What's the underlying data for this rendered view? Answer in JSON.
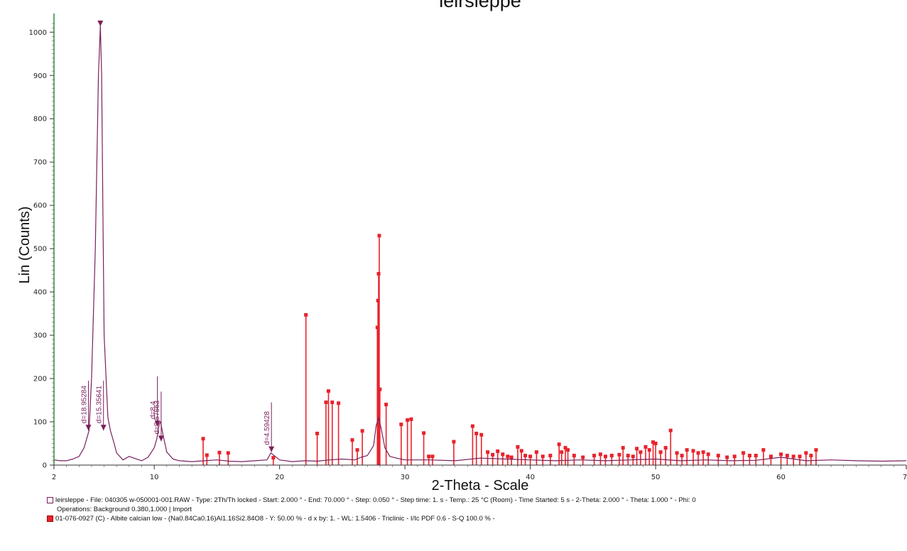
{
  "chart_data": {
    "type": "line",
    "title": "leirsleppe",
    "xlabel": "2-Theta - Scale",
    "ylabel": "Lin (Counts)",
    "xlim": [
      2,
      70
    ],
    "ylim": [
      0,
      1030
    ],
    "x_ticks": [
      "2",
      "10",
      "20",
      "30",
      "40",
      "50",
      "60",
      "7"
    ],
    "y_ticks": [
      "0",
      "100",
      "200",
      "300",
      "400",
      "500",
      "600",
      "700",
      "800",
      "900",
      "1000"
    ],
    "grid": false,
    "colors": {
      "pattern": "#7a1f5c",
      "reference": "#e8222b",
      "axis": "#2e8b3d"
    },
    "series": [
      {
        "name": "leirsleppe",
        "x": [
          2.0,
          2.5,
          3.0,
          3.5,
          4.0,
          4.4,
          4.8,
          5.0,
          5.3,
          5.55,
          5.7,
          5.8,
          5.9,
          6.0,
          6.3,
          6.5,
          6.8,
          7.0,
          7.5,
          8.0,
          8.5,
          9.0,
          9.5,
          10.0,
          10.2,
          10.4,
          10.5,
          10.7,
          11.0,
          11.5,
          12,
          13,
          14,
          15,
          16,
          17,
          18,
          19,
          19.3,
          20,
          21,
          22,
          23,
          24,
          25,
          26,
          26.5,
          27,
          27.5,
          27.7,
          27.9,
          28.1,
          28.4,
          28.8,
          29.5,
          30,
          32,
          34,
          36,
          38,
          40,
          42,
          44,
          46,
          48,
          50,
          52,
          54,
          56,
          58,
          60,
          62,
          64,
          66,
          68,
          70
        ],
        "y": [
          12,
          10,
          10,
          14,
          20,
          40,
          80,
          200,
          500,
          900,
          1015,
          900,
          600,
          300,
          110,
          80,
          50,
          28,
          12,
          20,
          15,
          10,
          18,
          40,
          60,
          95,
          100,
          70,
          30,
          14,
          10,
          8,
          10,
          12,
          9,
          8,
          10,
          12,
          28,
          12,
          8,
          10,
          9,
          12,
          14,
          12,
          18,
          22,
          45,
          90,
          110,
          85,
          40,
          20,
          15,
          12,
          12,
          10,
          16,
          14,
          12,
          10,
          12,
          10,
          12,
          14,
          10,
          12,
          10,
          11,
          18,
          10,
          12,
          10,
          9,
          10
        ]
      },
      {
        "name": "01-076-0927 (C) - Albite calcian low",
        "x": [
          13.9,
          14.2,
          15.2,
          15.9,
          19.5,
          22.1,
          23.0,
          23.7,
          23.9,
          24.2,
          24.7,
          25.8,
          26.2,
          26.6,
          27.8,
          27.85,
          27.9,
          27.95,
          28.0,
          28.5,
          29.7,
          30.2,
          30.5,
          31.5,
          31.9,
          32.2,
          33.9,
          35.4,
          35.7,
          36.1,
          36.6,
          37.0,
          37.4,
          37.8,
          38.2,
          38.5,
          39.0,
          39.3,
          39.6,
          40.0,
          40.5,
          41.0,
          41.6,
          42.3,
          42.5,
          42.8,
          43.0,
          43.5,
          44.2,
          45.1,
          45.6,
          46.0,
          46.5,
          47.1,
          47.4,
          47.8,
          48.2,
          48.5,
          48.8,
          49.2,
          49.5,
          49.8,
          50.0,
          50.4,
          50.8,
          51.2,
          51.7,
          52.1,
          52.5,
          53.0,
          53.4,
          53.8,
          54.2,
          55.0,
          55.7,
          56.3,
          57.0,
          57.5,
          58.0,
          58.6,
          59.2,
          60.0,
          60.5,
          61.0,
          61.5,
          62.0,
          62.4,
          62.8
        ],
        "y": [
          61,
          23,
          29,
          28,
          17,
          347,
          73,
          145,
          171,
          145,
          143,
          58,
          35,
          79,
          318,
          380,
          442,
          530,
          175,
          140,
          94,
          104,
          106,
          74,
          20,
          20,
          54,
          90,
          73,
          70,
          30,
          24,
          32,
          25,
          20,
          18,
          42,
          33,
          22,
          20,
          30,
          20,
          22,
          48,
          30,
          40,
          35,
          22,
          18,
          22,
          25,
          20,
          22,
          24,
          40,
          22,
          20,
          38,
          30,
          42,
          35,
          53,
          50,
          30,
          40,
          80,
          28,
          22,
          35,
          33,
          28,
          30,
          25,
          22,
          18,
          20,
          28,
          22,
          22,
          35,
          20,
          25,
          22,
          20,
          20,
          28,
          22,
          35
        ]
      }
    ],
    "peak_labels": [
      {
        "text": "d=18.95284",
        "x": 4.75,
        "y": 80
      },
      {
        "text": "d=15.35641",
        "x": 5.95,
        "y": 80
      },
      {
        "text": "d=8.4",
        "x": 10.25,
        "y": 90
      },
      {
        "text": "d=8.57563",
        "x": 10.55,
        "y": 55
      },
      {
        "text": "d=4.59428",
        "x": 19.35,
        "y": 30
      }
    ],
    "legend": [
      {
        "name": "leirsleppe",
        "text": "leirsleppe - File: 040305 w-050001-001.RAW - Type: 2Th/Th locked - Start: 2.000 ° - End: 70.000 ° - Step: 0.050 ° - Step time: 1. s - Temp.: 25 °C (Room) - Time Started: 5 s - 2-Theta: 2.000 ° - Theta: 1.000 ° - Phi: 0",
        "sub": "Operations: Background 0.380,1.000 | Import"
      },
      {
        "name": "01-076-0927 (C) - Albite calcian low",
        "text": "01-076-0927 (C) - Albite calcian low - (Na0.84Ca0.16)Al1.16Si2.84O8 - Y: 50.00 % - d x by: 1. - WL: 1.5406 - Triclinic - I/Ic PDF 0.6 - S-Q 100.0 % -"
      }
    ],
    "legend_position": "bottom"
  }
}
